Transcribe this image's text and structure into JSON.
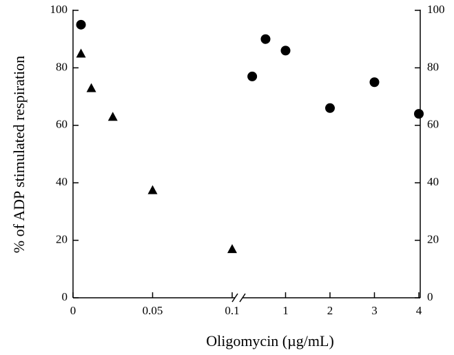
{
  "chart_data": {
    "type": "scatter",
    "x_label": "Oligomycin (µg/mL)",
    "y_label": "% of ADP stimulated respiration",
    "xlim": [
      0,
      0.1
    ],
    "xticks": [
      0,
      0.05,
      0.1
    ],
    "x2lim": [
      0,
      4
    ],
    "x2ticks": [
      1,
      2,
      3,
      4
    ],
    "ylim": [
      0,
      100
    ],
    "yticks": [
      0,
      20,
      40,
      60,
      80,
      100
    ],
    "y2lim": [
      0,
      100
    ],
    "y2ticks": [
      0,
      20,
      40,
      60,
      80,
      100
    ],
    "series": [
      {
        "marker": "circle",
        "color": "#000000",
        "x": [
          0.005
        ],
        "values": [
          95
        ]
      },
      {
        "marker": "circle",
        "color": "#000000",
        "axis": "x2",
        "x": [
          0.25,
          0.55,
          1,
          2,
          3,
          4
        ],
        "values": [
          77,
          90,
          86,
          66,
          75,
          64
        ]
      },
      {
        "marker": "triangle",
        "color": "#000000",
        "x": [
          0.005,
          0.0115,
          0.025,
          0.05,
          0.1
        ],
        "values": [
          85,
          73,
          63,
          37.5,
          17
        ]
      }
    ]
  }
}
